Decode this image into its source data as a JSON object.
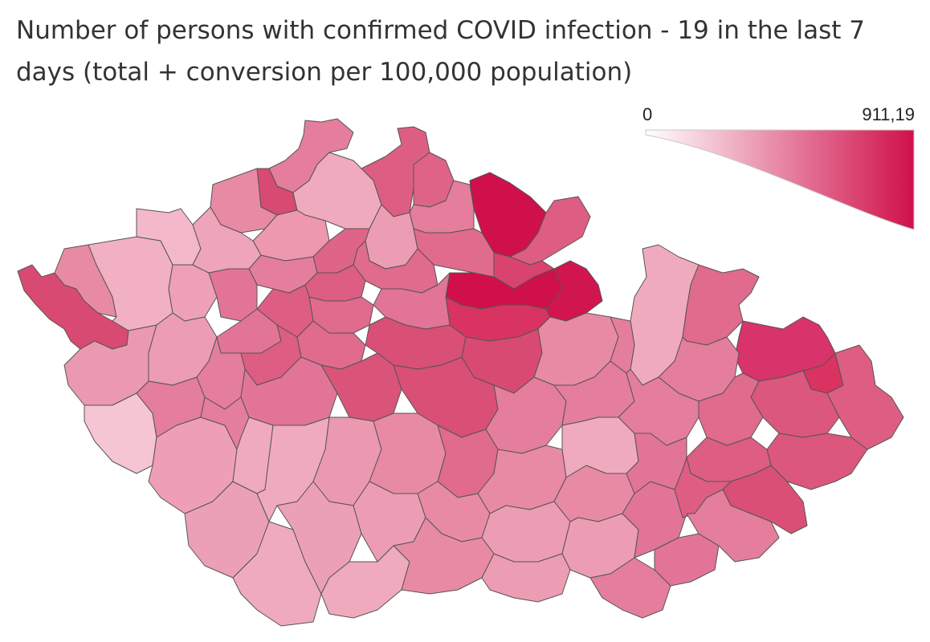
{
  "title": "Number of persons with confirmed COVID infection - 19 in the last 7 days (total + conversion per 100,000 population)",
  "legend": {
    "min_label": "0",
    "max_label": "911,19",
    "min_value": 0,
    "max_value": 911.19,
    "color_low": "#ffffff",
    "color_high": "#d0104a"
  },
  "colors": {
    "stroke": "#555555",
    "background": "#ffffff",
    "title_text": "#333333"
  }
}
